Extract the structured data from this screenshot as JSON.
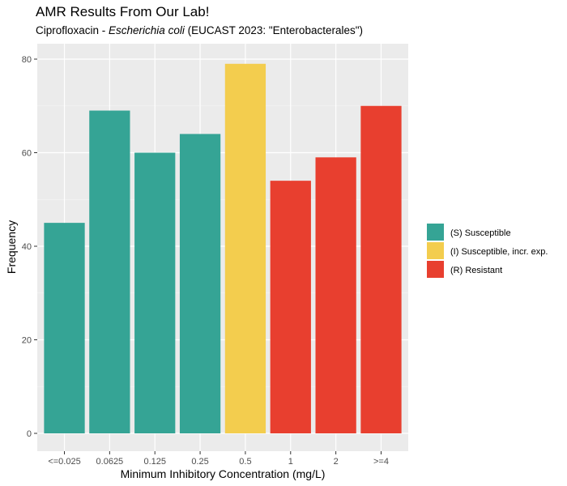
{
  "chart_data": {
    "type": "bar",
    "title": "AMR Results From Our Lab!",
    "subtitle": {
      "prefix": "Ciprofloxacin - ",
      "organism": "Escherichia coli",
      "suffix": " (EUCAST 2023: \"Enterobacterales\")"
    },
    "xlabel": "Minimum Inhibitory Concentration (mg/L)",
    "ylabel": "Frequency",
    "ylim": [
      0,
      85
    ],
    "yticks": [
      0,
      20,
      40,
      60,
      80
    ],
    "grid": true,
    "legend_position": "right",
    "categories": [
      "<=0.025",
      "0.0625",
      "0.125",
      "0.25",
      "0.5",
      "1",
      "2",
      ">=4"
    ],
    "values": [
      45,
      69,
      60,
      64,
      79,
      54,
      59,
      70
    ],
    "groups": [
      "S",
      "S",
      "S",
      "S",
      "I",
      "R",
      "R",
      "R"
    ],
    "legend": [
      {
        "key": "S",
        "label": "(S) Susceptible",
        "color": "#35A495"
      },
      {
        "key": "I",
        "label": "(I) Susceptible, incr. exp.",
        "color": "#F3CD4E"
      },
      {
        "key": "R",
        "label": "(R) Resistant",
        "color": "#E83F2F"
      }
    ]
  }
}
